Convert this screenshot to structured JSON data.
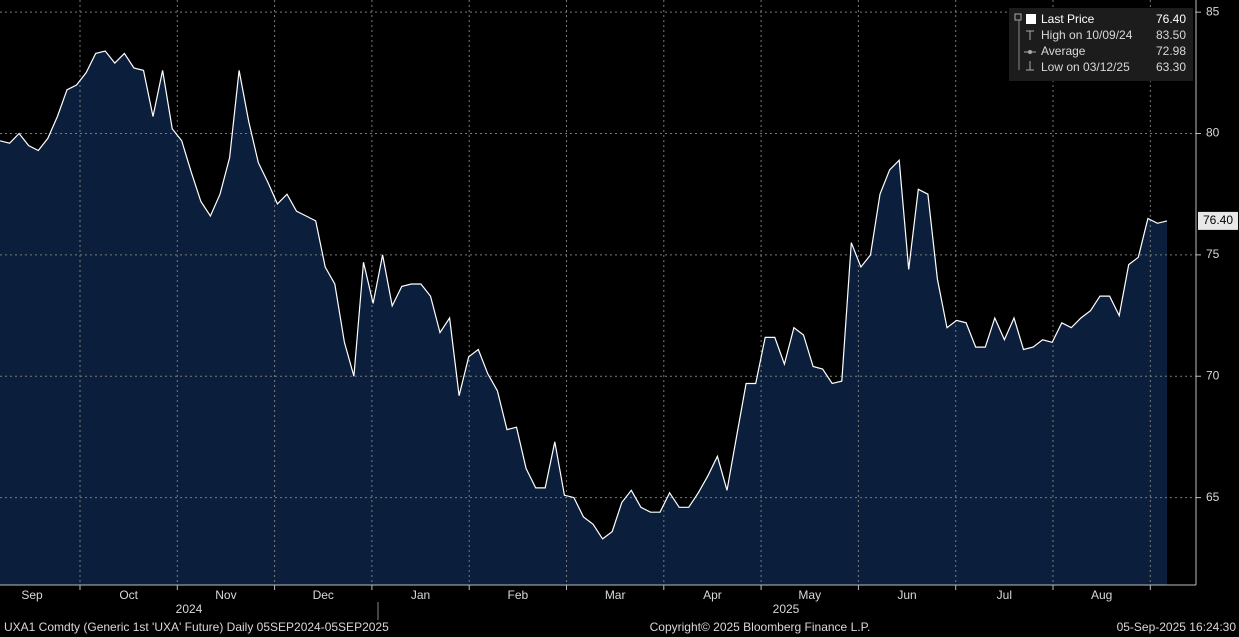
{
  "chart_data": {
    "type": "area",
    "months": [
      "Sep",
      "Oct",
      "Nov",
      "Dec",
      "Jan",
      "Feb",
      "Mar",
      "Apr",
      "May",
      "Jun",
      "Jul",
      "Aug"
    ],
    "years": [
      "2024",
      "2025"
    ],
    "values": [
      79.7,
      79.6,
      80.0,
      79.5,
      79.3,
      79.8,
      80.7,
      81.8,
      82.0,
      82.5,
      83.3,
      83.4,
      82.9,
      83.3,
      82.7,
      82.6,
      80.7,
      82.6,
      80.2,
      79.7,
      78.4,
      77.2,
      76.6,
      77.5,
      79.0,
      82.6,
      80.5,
      78.8,
      78.0,
      77.1,
      77.5,
      76.8,
      76.6,
      76.4,
      74.5,
      73.8,
      71.4,
      70.0,
      74.7,
      73.0,
      75.0,
      72.9,
      73.7,
      73.8,
      73.8,
      73.3,
      71.8,
      72.4,
      69.2,
      70.8,
      71.1,
      70.1,
      69.4,
      67.8,
      67.9,
      66.2,
      65.4,
      65.4,
      67.3,
      65.1,
      65.0,
      64.2,
      63.9,
      63.3,
      63.6,
      64.8,
      65.3,
      64.6,
      64.4,
      64.4,
      65.2,
      64.6,
      64.6,
      65.2,
      65.9,
      66.7,
      65.3,
      67.5,
      69.7,
      69.7,
      71.6,
      71.6,
      70.5,
      72.0,
      71.7,
      70.4,
      70.3,
      69.7,
      69.8,
      75.5,
      74.5,
      75.0,
      77.5,
      78.5,
      78.9,
      74.4,
      77.7,
      77.5,
      74.0,
      72.0,
      72.3,
      72.2,
      71.2,
      71.2,
      72.4,
      71.5,
      72.4,
      71.1,
      71.2,
      71.5,
      71.4,
      72.2,
      72.0,
      72.4,
      72.7,
      73.3,
      73.3,
      72.5,
      74.6,
      74.9,
      76.5,
      76.3,
      76.4
    ],
    "color": "#0b1f3c",
    "line_color": "#ffffff",
    "ylim": [
      61.4,
      85.5
    ],
    "yticks": [
      65,
      70,
      75,
      80,
      85
    ],
    "grid": true,
    "legend": [
      {
        "name": "Last Price",
        "value": 76.4,
        "value_label": "76.40"
      },
      {
        "name": "High on 10/09/24",
        "value": 83.5,
        "value_label": "83.50"
      },
      {
        "name": "Average",
        "value": 72.98,
        "value_label": "72.98"
      },
      {
        "name": "Low on 03/12/25",
        "value": 63.3,
        "value_label": "63.30"
      }
    ],
    "footer": {
      "left": "UXA1 Comdty (Generic 1st 'UXA' Future)  Daily 05SEP2024-05SEP2025",
      "center": "Copyright© 2025 Bloomberg Finance L.P.",
      "right": "05-Sep-2025 16:24:30"
    }
  }
}
